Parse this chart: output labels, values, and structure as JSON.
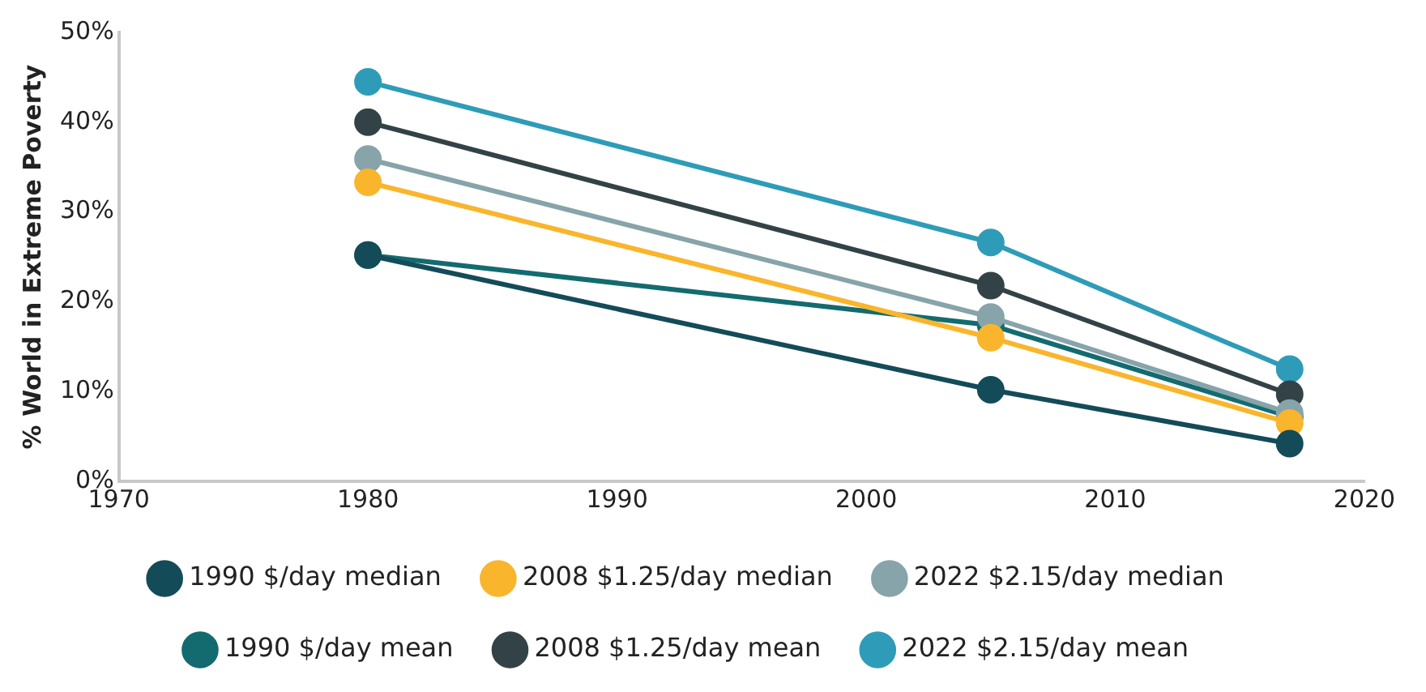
{
  "chart_data": {
    "type": "line",
    "ylabel": "% World in Extreme Poverty",
    "x": [
      1980,
      2005,
      2017
    ],
    "series": [
      {
        "name": "1990 $/day median",
        "color": "#144b59",
        "values": [
          25.2,
          10.2,
          4.2
        ]
      },
      {
        "name": "2008 $1.25/day median",
        "color": "#f9b52c",
        "values": [
          33.3,
          16,
          6.5
        ]
      },
      {
        "name": "2022 $2.15/day median",
        "color": "#86a4aa",
        "values": [
          35.9,
          18.3,
          7.6
        ]
      },
      {
        "name": "1990 $/day mean",
        "color": "#136b70",
        "values": [
          25.2,
          17.4,
          7.2
        ]
      },
      {
        "name": "2008 $1.25/day mean",
        "color": "#334246",
        "values": [
          40,
          21.8,
          9.7
        ]
      },
      {
        "name": "2022 $2.15/day mean",
        "color": "#2e9cb8",
        "values": [
          44.5,
          26.6,
          12.5
        ]
      }
    ],
    "xlim": [
      1970,
      2020
    ],
    "xticks": [
      1970,
      1980,
      1990,
      2000,
      2010,
      2020
    ],
    "ylim": [
      0,
      50
    ],
    "yticks": [
      {
        "value": 0,
        "label": "0%"
      },
      {
        "value": 10,
        "label": "10%"
      },
      {
        "value": 20,
        "label": "20%"
      },
      {
        "value": 30,
        "label": "30%"
      },
      {
        "value": 40,
        "label": "40%"
      },
      {
        "value": 50,
        "label": "50%"
      }
    ],
    "grid": false,
    "legend": "bottom",
    "marker": "circle",
    "line_style": "solid"
  }
}
